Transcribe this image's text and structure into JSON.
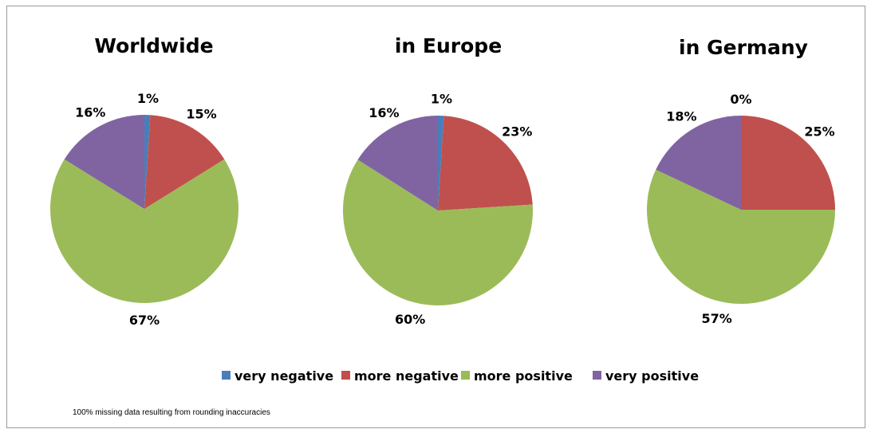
{
  "chart_data": {
    "type": "pie",
    "legend_position": "bottom",
    "legend": [
      "very negative",
      "more negative",
      "more positive",
      "very positive"
    ],
    "colors": {
      "very negative": "#4a7ebb",
      "more negative": "#c0504d",
      "more positive": "#9bbb59",
      "very positive": "#8064a2"
    },
    "charts": [
      {
        "title": "Worldwide",
        "slices": [
          {
            "category": "very negative",
            "value": 1,
            "label": "1%"
          },
          {
            "category": "more negative",
            "value": 15,
            "label": "15%"
          },
          {
            "category": "more positive",
            "value": 67,
            "label": "67%"
          },
          {
            "category": "very positive",
            "value": 16,
            "label": "16%"
          }
        ]
      },
      {
        "title": "in Europe",
        "slices": [
          {
            "category": "very negative",
            "value": 1,
            "label": "1%"
          },
          {
            "category": "more negative",
            "value": 23,
            "label": "23%"
          },
          {
            "category": "more positive",
            "value": 60,
            "label": "60%"
          },
          {
            "category": "very positive",
            "value": 16,
            "label": "16%"
          }
        ]
      },
      {
        "title": "in Germany",
        "slices": [
          {
            "category": "very negative",
            "value": 0,
            "label": "0%"
          },
          {
            "category": "more negative",
            "value": 25,
            "label": "25%"
          },
          {
            "category": "more positive",
            "value": 57,
            "label": "57%"
          },
          {
            "category": "very positive",
            "value": 18,
            "label": "18%"
          }
        ]
      }
    ],
    "footnote": "100% missing data resulting from rounding inaccuracies"
  }
}
